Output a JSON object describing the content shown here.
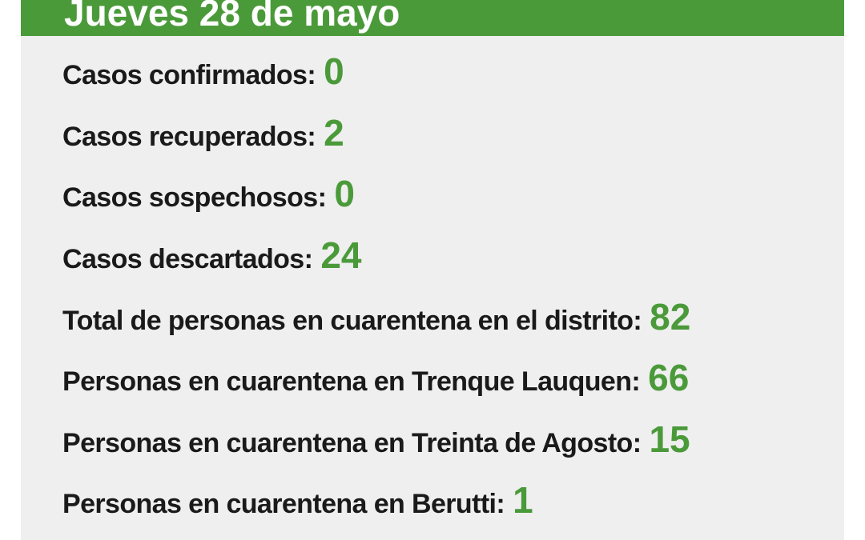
{
  "header": {
    "title": "Jueves 28 de mayo"
  },
  "colors": {
    "accent": "#4b9a3a",
    "panel": "#efefef"
  },
  "stats": [
    {
      "label": "Casos confirmados:",
      "value": "0"
    },
    {
      "label": "Casos recuperados:",
      "value": "2"
    },
    {
      "label": "Casos sospechosos:",
      "value": "0"
    },
    {
      "label": "Casos descartados:",
      "value": "24"
    },
    {
      "label": "Total de personas en cuarentena en el distrito:",
      "value": "82"
    },
    {
      "label": "Personas en cuarentena en Trenque Lauquen:",
      "value": "66"
    },
    {
      "label": "Personas en cuarentena en Treinta de Agosto:",
      "value": "15"
    },
    {
      "label": "Personas en cuarentena en Berutti:",
      "value": "1"
    }
  ]
}
